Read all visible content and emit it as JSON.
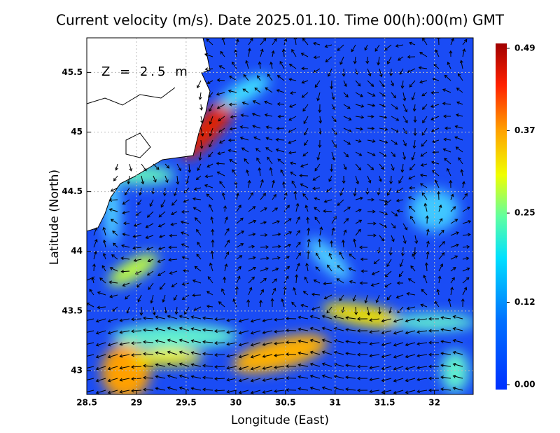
{
  "chart_data": {
    "type": "map",
    "title": "Current velocity (m/s). Date 2025.01.10. Time 00(h):00(m) GMT",
    "annotation": "Z = 2.5 m",
    "x_label": "Longitude (East)",
    "y_label": "Latitude (North)",
    "xlim": [
      28.5,
      32.39
    ],
    "ylim": [
      42.8,
      45.79
    ],
    "xticks": [
      28.5,
      29,
      29.5,
      30,
      30.5,
      31,
      31.5,
      32
    ],
    "yticks": [
      43,
      43.5,
      44,
      44.5,
      45,
      45.5
    ],
    "grid": true,
    "clim": [
      0,
      0.49
    ],
    "cticks": [
      {
        "value": 0,
        "label": "0.00"
      },
      0.12,
      0.25,
      0.37,
      0.49
    ]
  }
}
